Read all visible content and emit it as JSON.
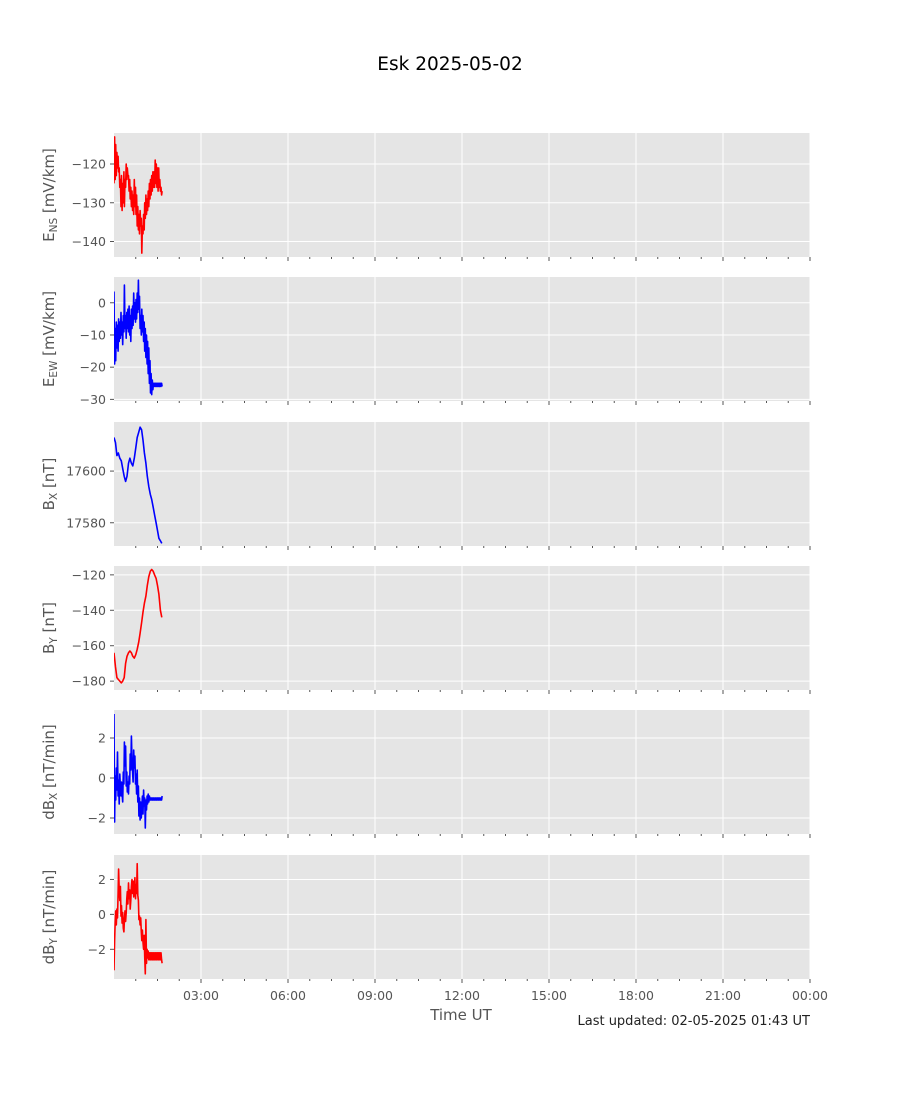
{
  "title": "Esk 2025-05-02",
  "xlabel": "Time UT",
  "footer": "Last updated: 02-05-2025 01:43 UT",
  "chart_data": [
    {
      "type": "line",
      "ylabel_base": "E",
      "ylabel_sub": "NS",
      "ylabel_unit": " [mV/km]",
      "color": "#ff0000",
      "ylim": [
        -144,
        -112
      ],
      "yticks": [
        -120,
        -130,
        -140
      ],
      "ytick_labels": [
        "−120",
        "−130",
        "−140"
      ],
      "xlim": [
        0,
        24
      ],
      "xticks": [
        3,
        6,
        9,
        12,
        15,
        18,
        21,
        24
      ],
      "series": [
        {
          "x": [
            0.0,
            0.02,
            0.04,
            0.06,
            0.08,
            0.1,
            0.12,
            0.14,
            0.16,
            0.18,
            0.2,
            0.22,
            0.24,
            0.26,
            0.28,
            0.3,
            0.32,
            0.34,
            0.36,
            0.38,
            0.4,
            0.42,
            0.44,
            0.46,
            0.48,
            0.5,
            0.52,
            0.54,
            0.56,
            0.58,
            0.6,
            0.62,
            0.64,
            0.66,
            0.68,
            0.7,
            0.72,
            0.74,
            0.76,
            0.78,
            0.8,
            0.82,
            0.84,
            0.86,
            0.88,
            0.9,
            0.92,
            0.94,
            0.96,
            0.98,
            1.0,
            1.02,
            1.04,
            1.06,
            1.08,
            1.1,
            1.12,
            1.14,
            1.16,
            1.18,
            1.2,
            1.22,
            1.24,
            1.26,
            1.28,
            1.3,
            1.32,
            1.34,
            1.36,
            1.38,
            1.4,
            1.42,
            1.44,
            1.46,
            1.48,
            1.5,
            1.52,
            1.54,
            1.56,
            1.58,
            1.6,
            1.62,
            1.64,
            1.66
          ],
          "y": [
            -125,
            -113,
            -124,
            -115,
            -123,
            -117,
            -121,
            -118,
            -122,
            -121,
            -126,
            -124,
            -131,
            -123,
            -132,
            -125,
            -130,
            -122,
            -131,
            -124,
            -126,
            -120,
            -124,
            -121,
            -123,
            -123,
            -127,
            -124,
            -129,
            -126,
            -131,
            -127,
            -132,
            -128,
            -133,
            -124,
            -131,
            -126,
            -133,
            -128,
            -136,
            -131,
            -137,
            -133,
            -138,
            -132,
            -136,
            -134,
            -143,
            -136,
            -138,
            -133,
            -137,
            -130,
            -134,
            -128,
            -133,
            -129,
            -132,
            -127,
            -131,
            -125,
            -129,
            -124,
            -128,
            -123,
            -127,
            -122,
            -126,
            -122,
            -126,
            -119,
            -125,
            -120,
            -126,
            -121,
            -127,
            -121,
            -126,
            -124,
            -127,
            -126,
            -128,
            -127
          ]
        }
      ]
    },
    {
      "type": "line",
      "ylabel_base": "E",
      "ylabel_sub": "EW",
      "ylabel_unit": " [mV/km]",
      "color": "#0000ff",
      "ylim": [
        -30.5,
        8
      ],
      "yticks": [
        0,
        -10,
        -20,
        -30
      ],
      "ytick_labels": [
        "0",
        "−10",
        "−20",
        "−30"
      ],
      "xlim": [
        0,
        24
      ],
      "xticks": [
        3,
        6,
        9,
        12,
        15,
        18,
        21,
        24
      ],
      "series": [
        {
          "x": [
            0.0,
            0.02,
            0.04,
            0.06,
            0.08,
            0.1,
            0.12,
            0.14,
            0.16,
            0.18,
            0.2,
            0.22,
            0.24,
            0.26,
            0.28,
            0.3,
            0.32,
            0.34,
            0.36,
            0.38,
            0.4,
            0.42,
            0.44,
            0.46,
            0.48,
            0.5,
            0.52,
            0.54,
            0.56,
            0.58,
            0.6,
            0.62,
            0.64,
            0.66,
            0.68,
            0.7,
            0.72,
            0.74,
            0.76,
            0.78,
            0.8,
            0.82,
            0.84,
            0.86,
            0.88,
            0.9,
            0.92,
            0.94,
            0.96,
            0.98,
            1.0,
            1.02,
            1.04,
            1.06,
            1.08,
            1.1,
            1.12,
            1.14,
            1.16,
            1.18,
            1.2,
            1.22,
            1.24,
            1.26,
            1.28,
            1.3,
            1.32,
            1.34,
            1.36,
            1.38,
            1.4,
            1.42,
            1.44,
            1.46,
            1.48,
            1.5,
            1.52,
            1.54,
            1.56,
            1.58,
            1.6,
            1.62,
            1.64,
            1.66
          ],
          "y": [
            3.5,
            -19,
            -8,
            -18,
            -6,
            -14,
            -7,
            -15,
            -5,
            -12,
            -6,
            -11,
            -3,
            -10,
            -6,
            -13,
            -4,
            -9,
            5.5,
            -8,
            -4,
            -11,
            -3,
            -8,
            -2,
            -9,
            -1,
            -10,
            -4,
            -12,
            -2,
            -8,
            -1,
            -7,
            3,
            -5,
            0,
            -6,
            1,
            -5,
            3,
            -3,
            7,
            -2,
            2,
            -8,
            -4,
            -10,
            -2,
            -9,
            -4,
            -12,
            -6,
            -15,
            -8,
            -17,
            -10,
            -19,
            -12,
            -22,
            -14,
            -25,
            -18,
            -28,
            -22,
            -28.5,
            -24,
            -27,
            -25,
            -26,
            -25,
            -26,
            -25,
            -26,
            -25,
            -26,
            -25,
            -26,
            -25,
            -26,
            -25,
            -26,
            -25,
            -26
          ]
        }
      ]
    },
    {
      "type": "line",
      "ylabel_base": "B",
      "ylabel_sub": "X",
      "ylabel_unit": " [nT]",
      "color": "#0000ff",
      "ylim": [
        17571,
        17619
      ],
      "yticks": [
        17600,
        17580
      ],
      "ytick_labels": [
        "17600",
        "17580"
      ],
      "xlim": [
        0,
        24
      ],
      "xticks": [
        3,
        6,
        9,
        12,
        15,
        18,
        21,
        24
      ],
      "series": [
        {
          "x": [
            0.0,
            0.05,
            0.1,
            0.15,
            0.2,
            0.25,
            0.3,
            0.35,
            0.4,
            0.45,
            0.5,
            0.55,
            0.6,
            0.65,
            0.7,
            0.75,
            0.8,
            0.85,
            0.9,
            0.95,
            1.0,
            1.05,
            1.1,
            1.15,
            1.2,
            1.25,
            1.3,
            1.35,
            1.4,
            1.45,
            1.5,
            1.55,
            1.6,
            1.65
          ],
          "y": [
            17613,
            17611,
            17606,
            17607,
            17605,
            17604,
            17601,
            17598,
            17596,
            17598,
            17603,
            17605,
            17603,
            17602,
            17605,
            17609,
            17613,
            17615,
            17617,
            17616,
            17612,
            17607,
            17603,
            17598,
            17594,
            17591,
            17589,
            17586,
            17583,
            17580,
            17577,
            17574,
            17573,
            17572
          ]
        }
      ]
    },
    {
      "type": "line",
      "ylabel_base": "B",
      "ylabel_sub": "Y",
      "ylabel_unit": " [nT]",
      "color": "#ff0000",
      "ylim": [
        -185,
        -115
      ],
      "yticks": [
        -120,
        -140,
        -160,
        -180
      ],
      "ytick_labels": [
        "−120",
        "−140",
        "−160",
        "−180"
      ],
      "xlim": [
        0,
        24
      ],
      "xticks": [
        3,
        6,
        9,
        12,
        15,
        18,
        21,
        24
      ],
      "series": [
        {
          "x": [
            0.0,
            0.05,
            0.1,
            0.15,
            0.2,
            0.25,
            0.3,
            0.35,
            0.4,
            0.45,
            0.5,
            0.55,
            0.6,
            0.65,
            0.7,
            0.75,
            0.8,
            0.85,
            0.9,
            0.95,
            1.0,
            1.05,
            1.1,
            1.15,
            1.2,
            1.25,
            1.3,
            1.35,
            1.4,
            1.45,
            1.5,
            1.55,
            1.6,
            1.65
          ],
          "y": [
            -164,
            -172,
            -178,
            -179,
            -180,
            -181,
            -180,
            -178,
            -170,
            -166,
            -164,
            -163,
            -164,
            -166,
            -167,
            -165,
            -162,
            -158,
            -153,
            -147,
            -141,
            -136,
            -132,
            -126,
            -121,
            -118,
            -117,
            -118,
            -120,
            -122,
            -126,
            -131,
            -140,
            -144
          ]
        }
      ]
    },
    {
      "type": "line",
      "ylabel_base": "dB",
      "ylabel_sub": "X",
      "ylabel_unit": " [nT/min]",
      "color": "#0000ff",
      "ylim": [
        -2.8,
        3.4
      ],
      "yticks": [
        2,
        0,
        -2
      ],
      "ytick_labels": [
        "2",
        "0",
        "−2"
      ],
      "xlim": [
        0,
        24
      ],
      "xticks": [
        3,
        6,
        9,
        12,
        15,
        18,
        21,
        24
      ],
      "series": [
        {
          "x": [
            0.0,
            0.02,
            0.04,
            0.06,
            0.08,
            0.1,
            0.12,
            0.14,
            0.16,
            0.18,
            0.2,
            0.22,
            0.24,
            0.26,
            0.28,
            0.3,
            0.32,
            0.34,
            0.36,
            0.38,
            0.4,
            0.42,
            0.44,
            0.46,
            0.48,
            0.5,
            0.52,
            0.54,
            0.56,
            0.58,
            0.6,
            0.62,
            0.64,
            0.66,
            0.68,
            0.7,
            0.72,
            0.74,
            0.76,
            0.78,
            0.8,
            0.82,
            0.84,
            0.86,
            0.88,
            0.9,
            0.92,
            0.94,
            0.96,
            0.98,
            1.0,
            1.02,
            1.04,
            1.06,
            1.08,
            1.1,
            1.12,
            1.14,
            1.16,
            1.18,
            1.2,
            1.22,
            1.24,
            1.26,
            1.28,
            1.3,
            1.32,
            1.34,
            1.36,
            1.38,
            1.4,
            1.42,
            1.44,
            1.46,
            1.48,
            1.5,
            1.52,
            1.54,
            1.56,
            1.58,
            1.6,
            1.62,
            1.64,
            1.66
          ],
          "y": [
            3.2,
            -2.2,
            0.1,
            -1.1,
            0.5,
            -0.6,
            1.3,
            -0.9,
            -0.1,
            -1.3,
            0.2,
            -0.5,
            -0.9,
            -0.2,
            -0.8,
            -1.2,
            0.3,
            -0.3,
            1.8,
            0.6,
            1.6,
            -0.4,
            0.3,
            -0.7,
            -0.2,
            -0.8,
            0.1,
            -0.3,
            1.2,
            0.4,
            2.1,
            0.9,
            0.3,
            -0.2,
            1.4,
            0.5,
            1.1,
            -0.3,
            0.2,
            -0.8,
            0.4,
            -1.2,
            -0.4,
            -1.9,
            -1.0,
            -2.1,
            -1.2,
            -2.0,
            -1.5,
            -0.9,
            -1.8,
            -0.6,
            -1.4,
            -1.0,
            -2.5,
            -1.1,
            -1.6,
            -0.9,
            -1.3,
            -0.8,
            -1.2,
            -0.9,
            -1.1,
            -1.0,
            -1.1,
            -1.0,
            -1.1,
            -1.0,
            -1.1,
            -1.0,
            -1.1,
            -1.0,
            -1.1,
            -1.0,
            -1.1,
            -1.0,
            -1.1,
            -1.0,
            -1.1,
            -1.0,
            -1.1,
            -1.0,
            -1.1,
            -0.9
          ]
        }
      ]
    },
    {
      "type": "line",
      "ylabel_base": "dB",
      "ylabel_sub": "Y",
      "ylabel_unit": " [nT/min]",
      "color": "#ff0000",
      "ylim": [
        -3.7,
        3.4
      ],
      "yticks": [
        2,
        0,
        -2
      ],
      "ytick_labels": [
        "2",
        "0",
        "−2"
      ],
      "xlim": [
        0,
        24
      ],
      "xticks": [
        3,
        6,
        9,
        12,
        15,
        18,
        21,
        24
      ],
      "series": [
        {
          "x": [
            0.0,
            0.02,
            0.04,
            0.06,
            0.08,
            0.1,
            0.12,
            0.14,
            0.16,
            0.18,
            0.2,
            0.22,
            0.24,
            0.26,
            0.28,
            0.3,
            0.32,
            0.34,
            0.36,
            0.38,
            0.4,
            0.42,
            0.44,
            0.46,
            0.48,
            0.5,
            0.52,
            0.54,
            0.56,
            0.58,
            0.6,
            0.62,
            0.64,
            0.66,
            0.68,
            0.7,
            0.72,
            0.74,
            0.76,
            0.78,
            0.8,
            0.82,
            0.84,
            0.86,
            0.88,
            0.9,
            0.92,
            0.94,
            0.96,
            0.98,
            1.0,
            1.02,
            1.04,
            1.06,
            1.08,
            1.1,
            1.12,
            1.14,
            1.16,
            1.18,
            1.2,
            1.22,
            1.24,
            1.26,
            1.28,
            1.3,
            1.32,
            1.34,
            1.36,
            1.38,
            1.4,
            1.42,
            1.44,
            1.46,
            1.48,
            1.5,
            1.52,
            1.54,
            1.56,
            1.58,
            1.6,
            1.62,
            1.64,
            1.66
          ],
          "y": [
            -3.2,
            -1.5,
            -0.4,
            0.2,
            -0.6,
            0.3,
            -0.2,
            1.2,
            2.6,
            1.4,
            0.8,
            1.6,
            -0.1,
            0.5,
            -0.5,
            0.1,
            -0.8,
            -1.0,
            -0.3,
            0.2,
            -0.4,
            0.1,
            0.9,
            1.3,
            0.6,
            1.8,
            0.9,
            1.4,
            0.3,
            0.8,
            1.6,
            2.0,
            1.2,
            1.9,
            1.0,
            1.5,
            2.1,
            0.9,
            1.7,
            1.2,
            2.9,
            1.1,
            0.8,
            -0.3,
            -0.1,
            -0.6,
            -0.2,
            -1.0,
            -1.5,
            -0.9,
            -1.6,
            -2.0,
            -1.2,
            -2.4,
            -3.4,
            -0.3,
            -2.8,
            -2.0,
            -2.5,
            -2.1,
            -2.6,
            -2.2,
            -2.6,
            -2.2,
            -2.6,
            -2.2,
            -2.6,
            -2.2,
            -2.6,
            -2.2,
            -2.6,
            -2.2,
            -2.6,
            -2.2,
            -2.6,
            -2.2,
            -2.6,
            -2.2,
            -2.6,
            -2.2,
            -2.6,
            -2.2,
            -2.6,
            -2.8
          ]
        }
      ]
    }
  ],
  "xtick_labels": [
    "03:00",
    "06:00",
    "09:00",
    "12:00",
    "15:00",
    "18:00",
    "21:00",
    "00:00"
  ]
}
